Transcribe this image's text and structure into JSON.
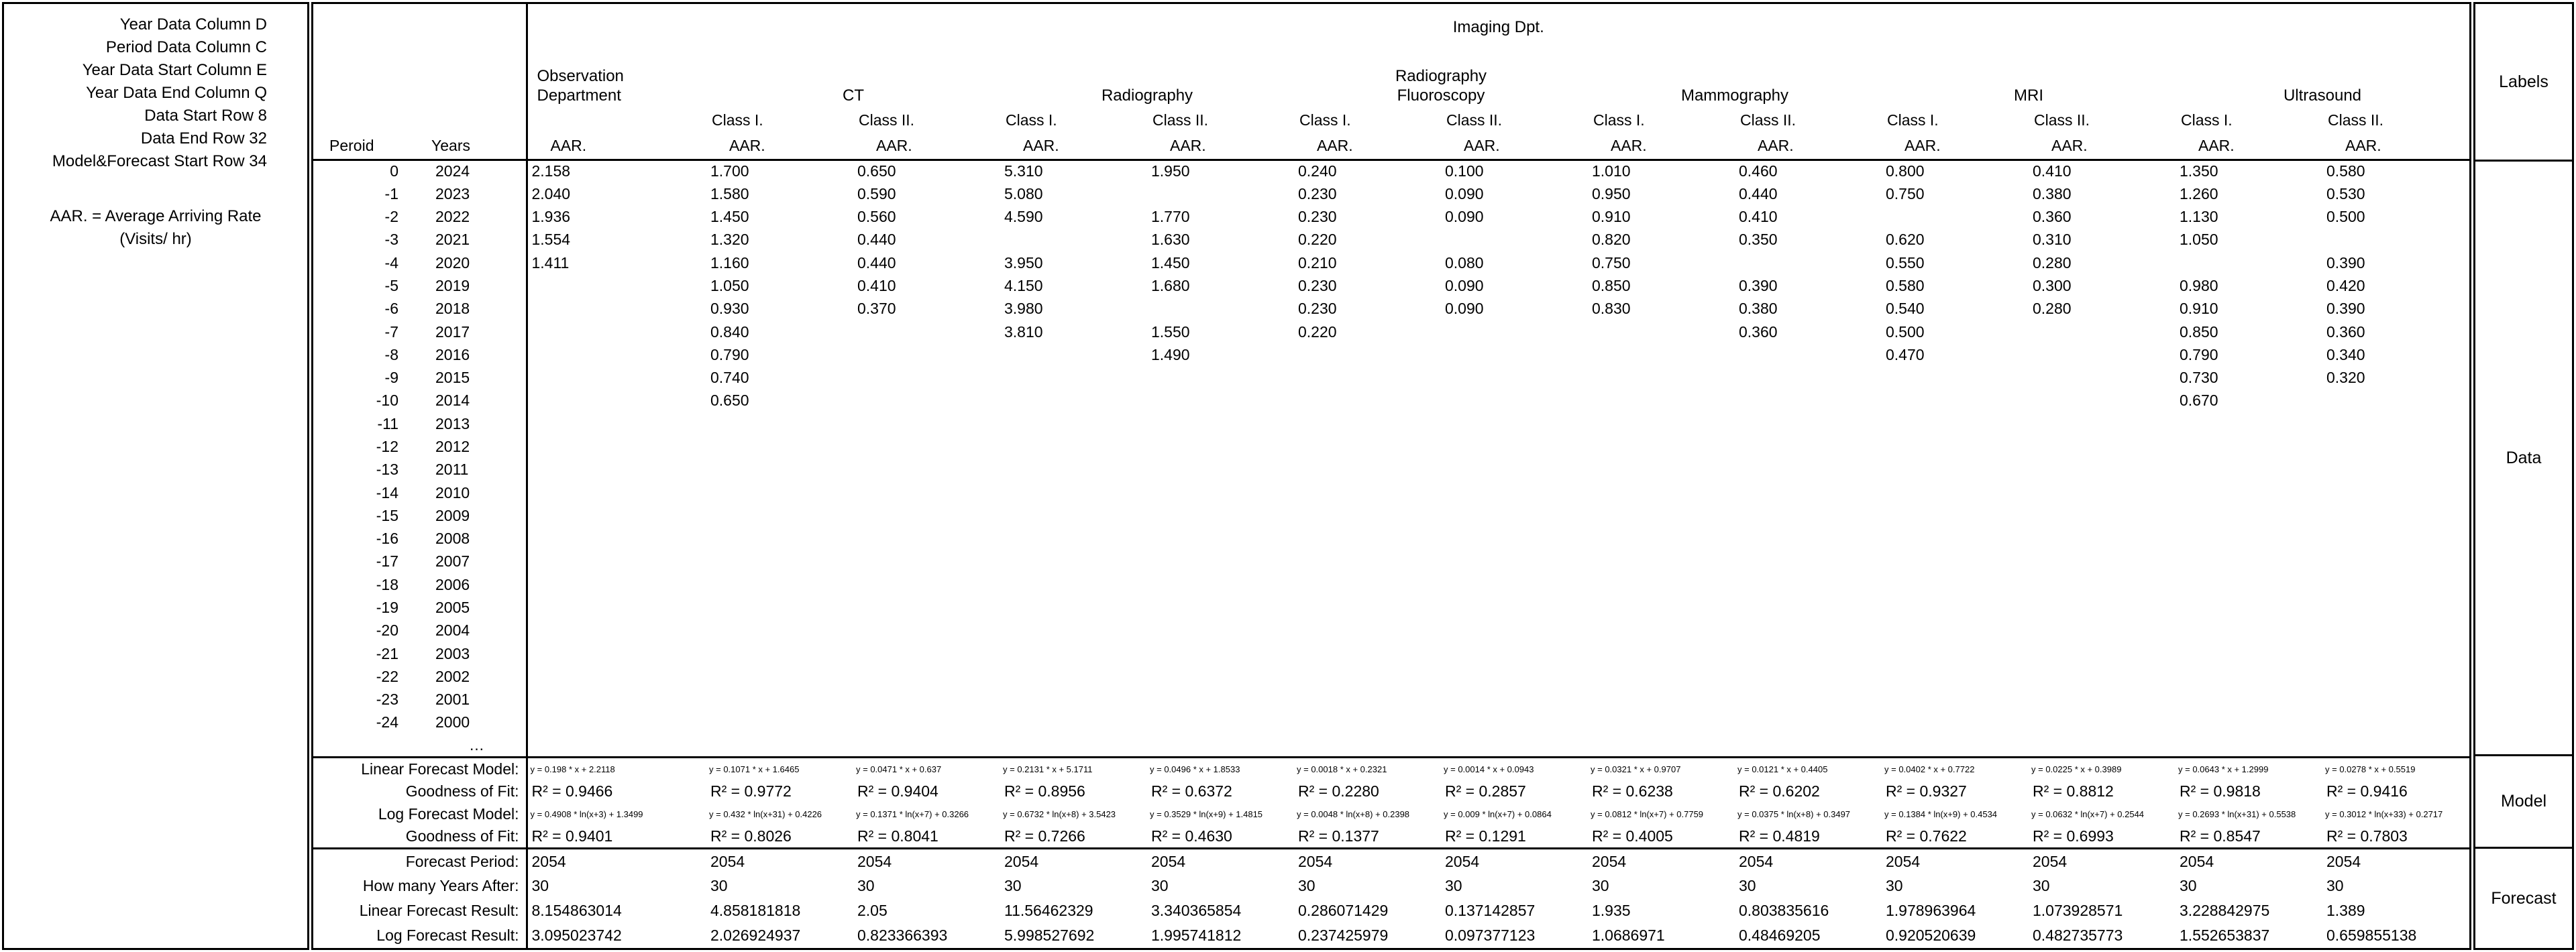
{
  "left_panel": {
    "lines": [
      "Year Data Column D",
      "Period Data Column C",
      "Year Data Start Column E",
      "Year Data End Column Q",
      "Data Start Row 8",
      "Data End Row 32",
      "Model&Forecast Start Row 34"
    ],
    "aar_note_line1": "AAR. = Average Arriving Rate",
    "aar_note_line2": "(Visits/ hr)"
  },
  "header": {
    "title": "Imaging Dpt.",
    "period_label": "Peroid",
    "years_label": "Years",
    "aar_label": "AAR.",
    "groups": [
      {
        "name_lines": [
          "Observation",
          "Department"
        ],
        "classes": [
          ""
        ]
      },
      {
        "name_lines": [
          "CT"
        ],
        "classes": [
          "Class I.",
          "Class II."
        ]
      },
      {
        "name_lines": [
          "Radiography"
        ],
        "classes": [
          "Class I.",
          "Class II."
        ]
      },
      {
        "name_lines": [
          "Radiography",
          "Fluoroscopy"
        ],
        "classes": [
          "Class I.",
          "Class II."
        ]
      },
      {
        "name_lines": [
          "Mammography"
        ],
        "classes": [
          "Class I.",
          "Class II."
        ]
      },
      {
        "name_lines": [
          "MRI"
        ],
        "classes": [
          "Class I.",
          "Class II."
        ]
      },
      {
        "name_lines": [
          "Ultrasound"
        ],
        "classes": [
          "Class I.",
          "Class II."
        ]
      }
    ]
  },
  "data_rows": [
    {
      "period": "0",
      "year": "2024",
      "values": [
        "2.158",
        "1.700",
        "0.650",
        "5.310",
        "1.950",
        "0.240",
        "0.100",
        "1.010",
        "0.460",
        "0.800",
        "0.410",
        "1.350",
        "0.580"
      ]
    },
    {
      "period": "-1",
      "year": "2023",
      "values": [
        "2.040",
        "1.580",
        "0.590",
        "5.080",
        "",
        "0.230",
        "0.090",
        "0.950",
        "0.440",
        "0.750",
        "0.380",
        "1.260",
        "0.530"
      ]
    },
    {
      "period": "-2",
      "year": "2022",
      "values": [
        "1.936",
        "1.450",
        "0.560",
        "4.590",
        "1.770",
        "0.230",
        "0.090",
        "0.910",
        "0.410",
        "",
        "0.360",
        "1.130",
        "0.500"
      ]
    },
    {
      "period": "-3",
      "year": "2021",
      "values": [
        "1.554",
        "1.320",
        "0.440",
        "",
        "1.630",
        "0.220",
        "",
        "0.820",
        "0.350",
        "0.620",
        "0.310",
        "1.050",
        ""
      ]
    },
    {
      "period": "-4",
      "year": "2020",
      "values": [
        "1.411",
        "1.160",
        "0.440",
        "3.950",
        "1.450",
        "0.210",
        "0.080",
        "0.750",
        "",
        "0.550",
        "0.280",
        "",
        "0.390"
      ]
    },
    {
      "period": "-5",
      "year": "2019",
      "values": [
        "",
        "1.050",
        "0.410",
        "4.150",
        "1.680",
        "0.230",
        "0.090",
        "0.850",
        "0.390",
        "0.580",
        "0.300",
        "0.980",
        "0.420"
      ]
    },
    {
      "period": "-6",
      "year": "2018",
      "values": [
        "",
        "0.930",
        "0.370",
        "3.980",
        "",
        "0.230",
        "0.090",
        "0.830",
        "0.380",
        "0.540",
        "0.280",
        "0.910",
        "0.390"
      ]
    },
    {
      "period": "-7",
      "year": "2017",
      "values": [
        "",
        "0.840",
        "",
        "3.810",
        "1.550",
        "0.220",
        "",
        "",
        "0.360",
        "0.500",
        "",
        "0.850",
        "0.360"
      ]
    },
    {
      "period": "-8",
      "year": "2016",
      "values": [
        "",
        "0.790",
        "",
        "",
        "1.490",
        "",
        "",
        "",
        "",
        "0.470",
        "",
        "0.790",
        "0.340"
      ]
    },
    {
      "period": "-9",
      "year": "2015",
      "values": [
        "",
        "0.740",
        "",
        "",
        "",
        "",
        "",
        "",
        "",
        "",
        "",
        "0.730",
        "0.320"
      ]
    },
    {
      "period": "-10",
      "year": "2014",
      "values": [
        "",
        "0.650",
        "",
        "",
        "",
        "",
        "",
        "",
        "",
        "",
        "",
        "0.670",
        ""
      ]
    },
    {
      "period": "-11",
      "year": "2013",
      "values": [
        "",
        "",
        "",
        "",
        "",
        "",
        "",
        "",
        "",
        "",
        "",
        "",
        ""
      ]
    },
    {
      "period": "-12",
      "year": "2012",
      "values": [
        "",
        "",
        "",
        "",
        "",
        "",
        "",
        "",
        "",
        "",
        "",
        "",
        ""
      ]
    },
    {
      "period": "-13",
      "year": "2011",
      "values": [
        "",
        "",
        "",
        "",
        "",
        "",
        "",
        "",
        "",
        "",
        "",
        "",
        ""
      ]
    },
    {
      "period": "-14",
      "year": "2010",
      "values": [
        "",
        "",
        "",
        "",
        "",
        "",
        "",
        "",
        "",
        "",
        "",
        "",
        ""
      ]
    },
    {
      "period": "-15",
      "year": "2009",
      "values": [
        "",
        "",
        "",
        "",
        "",
        "",
        "",
        "",
        "",
        "",
        "",
        "",
        ""
      ]
    },
    {
      "period": "-16",
      "year": "2008",
      "values": [
        "",
        "",
        "",
        "",
        "",
        "",
        "",
        "",
        "",
        "",
        "",
        "",
        ""
      ]
    },
    {
      "period": "-17",
      "year": "2007",
      "values": [
        "",
        "",
        "",
        "",
        "",
        "",
        "",
        "",
        "",
        "",
        "",
        "",
        ""
      ]
    },
    {
      "period": "-18",
      "year": "2006",
      "values": [
        "",
        "",
        "",
        "",
        "",
        "",
        "",
        "",
        "",
        "",
        "",
        "",
        ""
      ]
    },
    {
      "period": "-19",
      "year": "2005",
      "values": [
        "",
        "",
        "",
        "",
        "",
        "",
        "",
        "",
        "",
        "",
        "",
        "",
        ""
      ]
    },
    {
      "period": "-20",
      "year": "2004",
      "values": [
        "",
        "",
        "",
        "",
        "",
        "",
        "",
        "",
        "",
        "",
        "",
        "",
        ""
      ]
    },
    {
      "period": "-21",
      "year": "2003",
      "values": [
        "",
        "",
        "",
        "",
        "",
        "",
        "",
        "",
        "",
        "",
        "",
        "",
        ""
      ]
    },
    {
      "period": "-22",
      "year": "2002",
      "values": [
        "",
        "",
        "",
        "",
        "",
        "",
        "",
        "",
        "",
        "",
        "",
        "",
        ""
      ]
    },
    {
      "period": "-23",
      "year": "2001",
      "values": [
        "",
        "",
        "",
        "",
        "",
        "",
        "",
        "",
        "",
        "",
        "",
        "",
        ""
      ]
    },
    {
      "period": "-24",
      "year": "2000",
      "values": [
        "",
        "",
        "",
        "",
        "",
        "",
        "",
        "",
        "",
        "",
        "",
        "",
        ""
      ]
    },
    {
      "period": "",
      "year": "…",
      "values": [
        "",
        "",
        "",
        "",
        "",
        "",
        "",
        "",
        "",
        "",
        "",
        "",
        ""
      ]
    }
  ],
  "model": {
    "rows": [
      {
        "label": "Linear Forecast Model:",
        "small": true,
        "values": [
          "y = 0.198 * x + 2.2118",
          "y = 0.1071 * x + 1.6465",
          "y = 0.0471 * x + 0.637",
          "y = 0.2131 * x + 5.1711",
          "y = 0.0496 * x + 1.8533",
          "y = 0.0018 * x + 0.2321",
          "y = 0.0014 * x + 0.0943",
          "y = 0.0321 * x + 0.9707",
          "y = 0.0121 * x + 0.4405",
          "y = 0.0402 * x + 0.7722",
          "y = 0.0225 * x + 0.3989",
          "y = 0.0643 * x + 1.2999",
          "y = 0.0278 * x + 0.5519"
        ]
      },
      {
        "label": "Goodness of Fit:",
        "small": false,
        "values": [
          "R² = 0.9466",
          "R² = 0.9772",
          "R² = 0.9404",
          "R² = 0.8956",
          "R² = 0.6372",
          "R² = 0.2280",
          "R² = 0.2857",
          "R² = 0.6238",
          "R² = 0.6202",
          "R² = 0.9327",
          "R² = 0.8812",
          "R² = 0.9818",
          "R² = 0.9416"
        ]
      },
      {
        "label": "Log Forecast Model:",
        "small": true,
        "values": [
          "y = 0.4908 * ln(x+3) + 1.3499",
          "y = 0.432 * ln(x+31) + 0.4226",
          "y = 0.1371 * ln(x+7) + 0.3266",
          "y = 0.6732 * ln(x+8) + 3.5423",
          "y = 0.3529 * ln(x+9) + 1.4815",
          "y = 0.0048 * ln(x+8) + 0.2398",
          "y = 0.009 * ln(x+7) + 0.0864",
          "y = 0.0812 * ln(x+7) + 0.7759",
          "y = 0.0375 * ln(x+8) + 0.3497",
          "y = 0.1384 * ln(x+9) + 0.4534",
          "y = 0.0632 * ln(x+7) + 0.2544",
          "y = 0.2693 * ln(x+31) + 0.5538",
          "y = 0.3012 * ln(x+33) + 0.2717"
        ]
      },
      {
        "label": "Goodness of Fit:",
        "small": false,
        "values": [
          "R² = 0.9401",
          "R² = 0.8026",
          "R² = 0.8041",
          "R² = 0.7266",
          "R² = 0.4630",
          "R² = 0.1377",
          "R² = 0.1291",
          "R² = 0.4005",
          "R² = 0.4819",
          "R² = 0.7622",
          "R² = 0.6993",
          "R² = 0.8547",
          "R² = 0.7803"
        ]
      }
    ]
  },
  "forecast": {
    "rows": [
      {
        "label": "Forecast Period:",
        "small": false,
        "values": [
          "2054",
          "2054",
          "2054",
          "2054",
          "2054",
          "2054",
          "2054",
          "2054",
          "2054",
          "2054",
          "2054",
          "2054",
          "2054"
        ]
      },
      {
        "label": "How many Years After:",
        "small": false,
        "values": [
          "30",
          "30",
          "30",
          "30",
          "30",
          "30",
          "30",
          "30",
          "30",
          "30",
          "30",
          "30",
          "30"
        ]
      },
      {
        "label": "Linear Forecast Result:",
        "small": false,
        "values": [
          "8.154863014",
          "4.858181818",
          "2.05",
          "11.56462329",
          "3.340365854",
          "0.286071429",
          "0.137142857",
          "1.935",
          "0.803835616",
          "1.978963964",
          "1.073928571",
          "3.228842975",
          "1.389"
        ]
      },
      {
        "label": "Log Forecast Result:",
        "small": false,
        "values": [
          "3.095023742",
          "2.026924937",
          "0.823366393",
          "5.998527692",
          "1.995741812",
          "0.237425979",
          "0.097377123",
          "1.0686971",
          "0.48469205",
          "0.920520639",
          "0.482735773",
          "1.552653837",
          "0.659855138"
        ]
      }
    ]
  },
  "side_panel": {
    "labels": [
      "Labels",
      "Data",
      "Model",
      "Forecast"
    ]
  }
}
